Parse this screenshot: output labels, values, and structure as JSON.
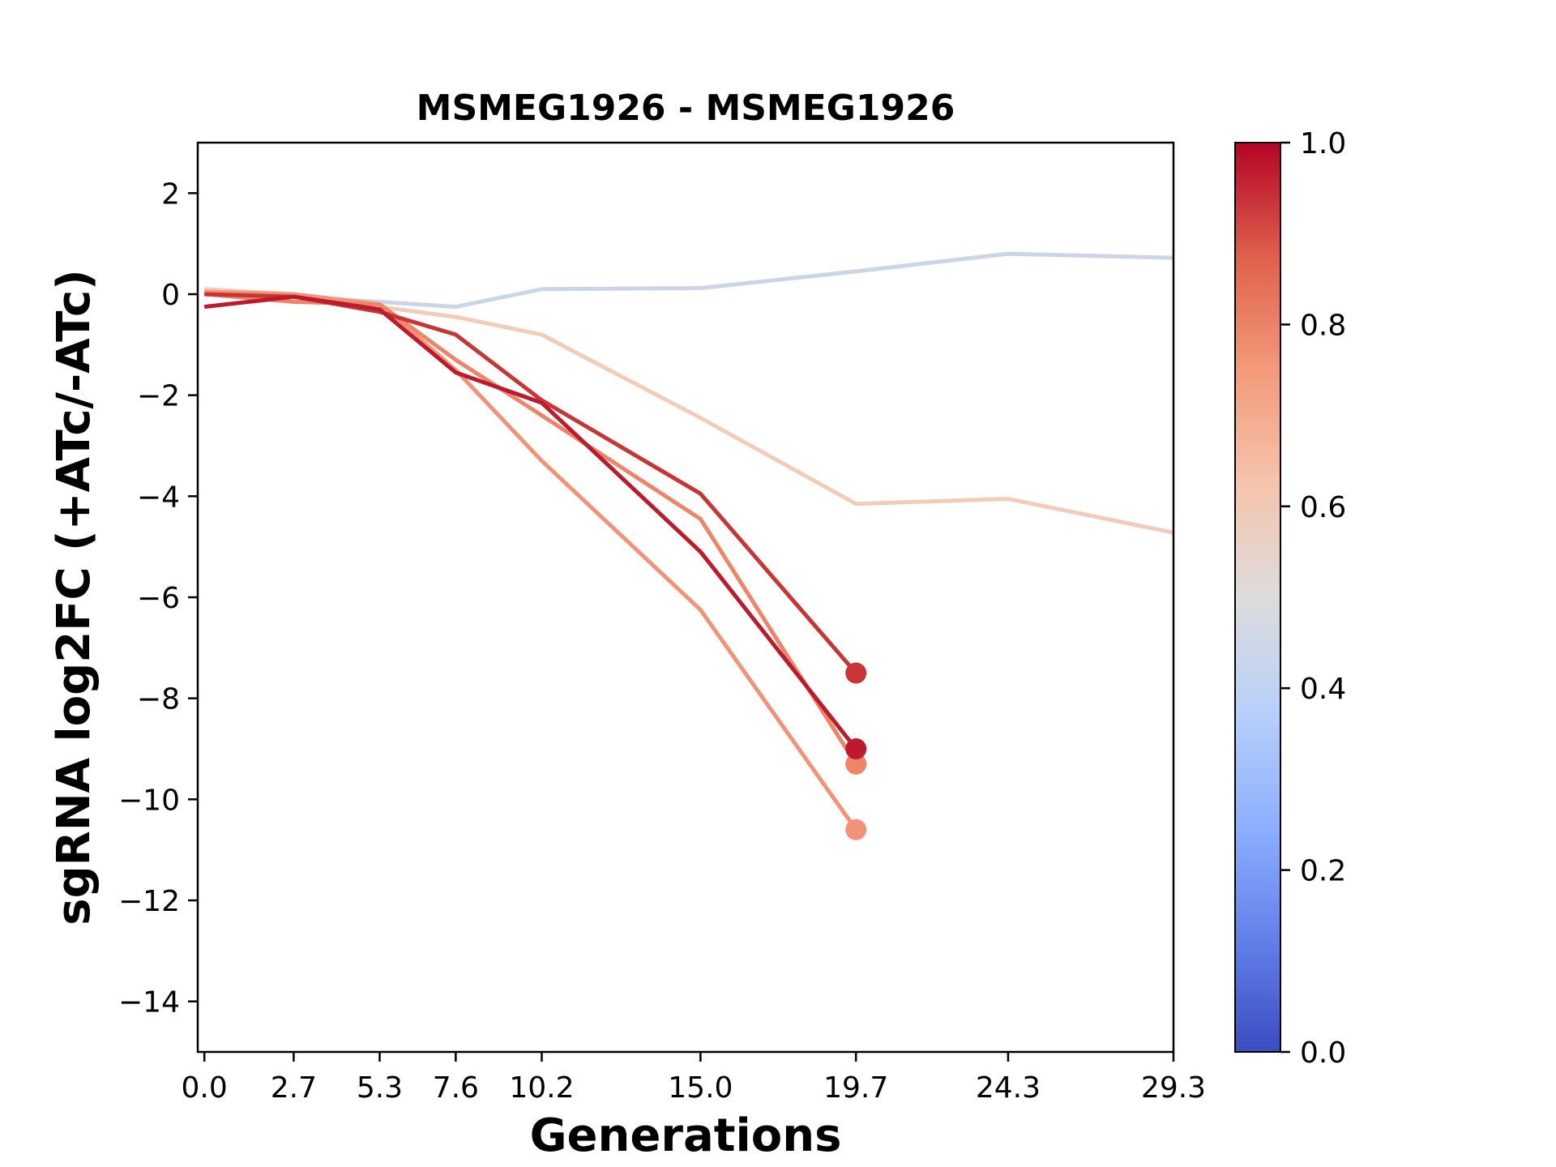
{
  "chart_data": {
    "type": "line",
    "title": "MSMEG1926 - MSMEG1926",
    "xlabel": "Generations",
    "ylabel": "sgRNA log2FC (+ATc/-ATc)",
    "x_ticks": [
      "0.0",
      "2.7",
      "5.3",
      "7.6",
      "10.2",
      "15.0",
      "19.7",
      "24.3",
      "29.3"
    ],
    "y_ticks": [
      2,
      0,
      -2,
      -4,
      -6,
      -8,
      -10,
      -12,
      -14
    ],
    "y_tick_labels": [
      "2",
      "0",
      "−2",
      "−4",
      "−6",
      "−8",
      "−10",
      "−12",
      "−14"
    ],
    "xlim": [
      -0.2,
      29.3
    ],
    "ylim": [
      -15,
      3
    ],
    "grid": false,
    "colorbar": {
      "ticks": [
        0.0,
        0.2,
        0.4,
        0.6,
        0.8,
        1.0
      ],
      "tick_labels": [
        "0.0",
        "0.2",
        "0.4",
        "0.6",
        "0.8",
        "1.0"
      ],
      "colormap": "coolwarm",
      "stops": [
        "#3b4cc0",
        "#6282ea",
        "#8db0fe",
        "#b8d0f9",
        "#dddcdc",
        "#f5c4ac",
        "#f49a7b",
        "#de604d",
        "#b40426"
      ]
    },
    "series": [
      {
        "color_value": 0.45,
        "color": "#ccd5e6",
        "x": [
          0.0,
          2.7,
          5.3,
          7.6,
          10.2,
          15.0,
          19.7,
          24.3,
          29.3
        ],
        "y": [
          0.05,
          -0.05,
          -0.15,
          -0.25,
          0.1,
          0.12,
          0.45,
          0.8,
          0.72
        ],
        "endpoint_marker": false
      },
      {
        "color_value": 0.6,
        "color": "#f1cdb9",
        "x": [
          0.0,
          2.7,
          5.3,
          7.6,
          10.2,
          15.0,
          19.7,
          24.3,
          29.3
        ],
        "y": [
          0.1,
          0.0,
          -0.25,
          -0.45,
          -0.8,
          -2.45,
          -4.15,
          -4.05,
          -4.72
        ],
        "endpoint_marker": false
      },
      {
        "color_value": 0.78,
        "color": "#f19378",
        "x": [
          0.0,
          2.7,
          5.3,
          7.6,
          10.2,
          15.0,
          19.7
        ],
        "y": [
          0.05,
          0.0,
          -0.2,
          -1.5,
          -3.3,
          -6.25,
          -10.6
        ],
        "endpoint_marker": true
      },
      {
        "color_value": 0.8,
        "color": "#ee8468",
        "x": [
          0.0,
          2.7,
          5.3,
          7.6,
          10.2,
          15.0,
          19.7
        ],
        "y": [
          0.0,
          -0.15,
          -0.2,
          -1.3,
          -2.4,
          -4.45,
          -9.3
        ],
        "endpoint_marker": true
      },
      {
        "color_value": 0.93,
        "color": "#c73635",
        "x": [
          0.0,
          2.7,
          5.3,
          7.6,
          10.2,
          15.0,
          19.7
        ],
        "y": [
          0.0,
          -0.05,
          -0.35,
          -0.8,
          -2.1,
          -3.95,
          -7.5
        ],
        "endpoint_marker": true
      },
      {
        "color_value": 0.97,
        "color": "#bb1b2c",
        "x": [
          0.0,
          2.7,
          5.3,
          7.6,
          10.2,
          15.0,
          19.7
        ],
        "y": [
          -0.25,
          -0.05,
          -0.3,
          -1.55,
          -2.15,
          -5.1,
          -9.0
        ],
        "endpoint_marker": true
      }
    ]
  }
}
